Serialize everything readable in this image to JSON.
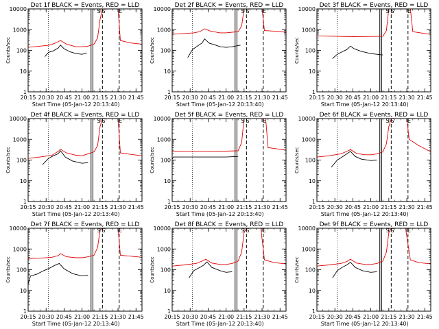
{
  "chart_data": {
    "type": "line",
    "layout": "3x3 grid",
    "y_scale": "log",
    "ylim": [
      1,
      10000
    ],
    "xlim": [
      "20:15",
      "21:50"
    ],
    "ylabel": "Counts/sec",
    "xlabel": "Start Time (05-Jan-12 20:13:40)",
    "xticks": [
      "20:15",
      "20:30",
      "20:45",
      "21:00",
      "21:15",
      "21:30",
      "21:45"
    ],
    "yticks": [
      "1",
      "10",
      "100",
      "1000",
      "10000"
    ],
    "markers": [
      "S",
      "S",
      "E"
    ],
    "colors": {
      "events": "#000000",
      "lld": "#e00000"
    },
    "panels": [
      {
        "title": "Det 1f BLACK = Events, RED = LLD",
        "events": [
          {
            "t": "20:29",
            "v": 50
          },
          {
            "t": "20:32",
            "v": 80
          },
          {
            "t": "20:36",
            "v": 95
          },
          {
            "t": "20:40",
            "v": 130
          },
          {
            "t": "20:42",
            "v": 180
          },
          {
            "t": "20:45",
            "v": 120
          },
          {
            "t": "20:50",
            "v": 85
          },
          {
            "t": "20:55",
            "v": 70
          },
          {
            "t": "21:00",
            "v": 65
          },
          {
            "t": "21:04",
            "v": 75
          }
        ],
        "lld": [
          {
            "t": "20:15",
            "v": 140
          },
          {
            "t": "20:25",
            "v": 160
          },
          {
            "t": "20:33",
            "v": 180
          },
          {
            "t": "20:38",
            "v": 230
          },
          {
            "t": "20:42",
            "v": 300
          },
          {
            "t": "20:47",
            "v": 200
          },
          {
            "t": "20:55",
            "v": 150
          },
          {
            "t": "21:00",
            "v": 150
          },
          {
            "t": "21:05",
            "v": 160
          },
          {
            "t": "21:10",
            "v": 200
          },
          {
            "t": "21:13",
            "v": 400
          },
          {
            "t": "21:15",
            "v": 3000
          },
          {
            "t": "21:17",
            "v": 10000
          },
          {
            "t": "21:30",
            "v": 10000
          },
          {
            "t": "21:32",
            "v": 300
          },
          {
            "t": "21:40",
            "v": 230
          },
          {
            "t": "21:50",
            "v": 200
          }
        ]
      },
      {
        "title": "Det 2f BLACK = Events, RED = LLD",
        "events": [
          {
            "t": "20:28",
            "v": 45
          },
          {
            "t": "20:32",
            "v": 110
          },
          {
            "t": "20:36",
            "v": 160
          },
          {
            "t": "20:40",
            "v": 230
          },
          {
            "t": "20:42",
            "v": 360
          },
          {
            "t": "20:46",
            "v": 220
          },
          {
            "t": "20:50",
            "v": 190
          },
          {
            "t": "20:55",
            "v": 150
          },
          {
            "t": "21:00",
            "v": 140
          },
          {
            "t": "21:05",
            "v": 150
          },
          {
            "t": "21:12",
            "v": 180
          }
        ],
        "lld": [
          {
            "t": "20:15",
            "v": 600
          },
          {
            "t": "20:25",
            "v": 650
          },
          {
            "t": "20:33",
            "v": 700
          },
          {
            "t": "20:38",
            "v": 800
          },
          {
            "t": "20:42",
            "v": 1100
          },
          {
            "t": "20:47",
            "v": 850
          },
          {
            "t": "20:55",
            "v": 700
          },
          {
            "t": "21:00",
            "v": 700
          },
          {
            "t": "21:05",
            "v": 750
          },
          {
            "t": "21:10",
            "v": 800
          },
          {
            "t": "21:13",
            "v": 1500
          },
          {
            "t": "21:15",
            "v": 10000
          },
          {
            "t": "21:30",
            "v": 10000
          },
          {
            "t": "21:32",
            "v": 900
          },
          {
            "t": "21:40",
            "v": 850
          },
          {
            "t": "21:50",
            "v": 750
          }
        ]
      },
      {
        "title": "Det 3f BLACK = Events, RED = LLD",
        "events": [
          {
            "t": "20:28",
            "v": 40
          },
          {
            "t": "20:32",
            "v": 65
          },
          {
            "t": "20:36",
            "v": 85
          },
          {
            "t": "20:40",
            "v": 110
          },
          {
            "t": "20:43",
            "v": 160
          },
          {
            "t": "20:46",
            "v": 120
          },
          {
            "t": "20:52",
            "v": 90
          },
          {
            "t": "21:00",
            "v": 70
          },
          {
            "t": "21:05",
            "v": 65
          },
          {
            "t": "21:10",
            "v": 60
          }
        ],
        "lld": [
          {
            "t": "20:15",
            "v": 500
          },
          {
            "t": "20:30",
            "v": 480
          },
          {
            "t": "20:45",
            "v": 460
          },
          {
            "t": "21:00",
            "v": 470
          },
          {
            "t": "21:10",
            "v": 480
          },
          {
            "t": "21:13",
            "v": 900
          },
          {
            "t": "21:15",
            "v": 10000
          },
          {
            "t": "21:33",
            "v": 10000
          },
          {
            "t": "21:35",
            "v": 800
          },
          {
            "t": "21:45",
            "v": 650
          },
          {
            "t": "21:50",
            "v": 600
          }
        ]
      },
      {
        "title": "Det 4f BLACK = Events, RED = LLD",
        "events": [
          {
            "t": "20:27",
            "v": 60
          },
          {
            "t": "20:32",
            "v": 120
          },
          {
            "t": "20:36",
            "v": 160
          },
          {
            "t": "20:40",
            "v": 200
          },
          {
            "t": "20:42",
            "v": 280
          },
          {
            "t": "20:46",
            "v": 140
          },
          {
            "t": "20:52",
            "v": 90
          },
          {
            "t": "21:00",
            "v": 70
          },
          {
            "t": "21:05",
            "v": 75
          }
        ],
        "lld": [
          {
            "t": "20:15",
            "v": 120
          },
          {
            "t": "20:25",
            "v": 140
          },
          {
            "t": "20:35",
            "v": 170
          },
          {
            "t": "20:40",
            "v": 260
          },
          {
            "t": "20:42",
            "v": 330
          },
          {
            "t": "20:47",
            "v": 220
          },
          {
            "t": "20:55",
            "v": 170
          },
          {
            "t": "21:00",
            "v": 160
          },
          {
            "t": "21:05",
            "v": 200
          },
          {
            "t": "21:10",
            "v": 250
          },
          {
            "t": "21:13",
            "v": 500
          },
          {
            "t": "21:15",
            "v": 4000
          },
          {
            "t": "21:17",
            "v": 10000
          },
          {
            "t": "21:30",
            "v": 10000
          },
          {
            "t": "21:32",
            "v": 220
          },
          {
            "t": "21:40",
            "v": 190
          },
          {
            "t": "21:50",
            "v": 160
          }
        ]
      },
      {
        "title": "Det 5f BLACK = Events, RED = LLD",
        "events": [
          {
            "t": "20:15",
            "v": 110
          },
          {
            "t": "20:16",
            "v": 140
          },
          {
            "t": "20:30",
            "v": 140
          },
          {
            "t": "20:45",
            "v": 140
          },
          {
            "t": "21:00",
            "v": 140
          },
          {
            "t": "21:10",
            "v": 150
          }
        ],
        "lld": [
          {
            "t": "20:15",
            "v": 260
          },
          {
            "t": "20:30",
            "v": 260
          },
          {
            "t": "20:45",
            "v": 260
          },
          {
            "t": "21:00",
            "v": 270
          },
          {
            "t": "21:10",
            "v": 280
          },
          {
            "t": "21:13",
            "v": 700
          },
          {
            "t": "21:15",
            "v": 10000
          },
          {
            "t": "21:33",
            "v": 10000
          },
          {
            "t": "21:35",
            "v": 400
          },
          {
            "t": "21:45",
            "v": 330
          },
          {
            "t": "21:50",
            "v": 300
          }
        ]
      },
      {
        "title": "Det 6f BLACK = Events, RED = LLD",
        "events": [
          {
            "t": "20:27",
            "v": 45
          },
          {
            "t": "20:32",
            "v": 100
          },
          {
            "t": "20:36",
            "v": 140
          },
          {
            "t": "20:40",
            "v": 200
          },
          {
            "t": "20:43",
            "v": 260
          },
          {
            "t": "20:47",
            "v": 150
          },
          {
            "t": "20:52",
            "v": 110
          },
          {
            "t": "21:00",
            "v": 95
          },
          {
            "t": "21:05",
            "v": 100
          }
        ],
        "lld": [
          {
            "t": "20:15",
            "v": 140
          },
          {
            "t": "20:25",
            "v": 160
          },
          {
            "t": "20:35",
            "v": 200
          },
          {
            "t": "20:40",
            "v": 260
          },
          {
            "t": "20:43",
            "v": 320
          },
          {
            "t": "20:48",
            "v": 210
          },
          {
            "t": "20:55",
            "v": 180
          },
          {
            "t": "21:00",
            "v": 180
          },
          {
            "t": "21:05",
            "v": 200
          },
          {
            "t": "21:10",
            "v": 250
          },
          {
            "t": "21:13",
            "v": 600
          },
          {
            "t": "21:15",
            "v": 4000
          },
          {
            "t": "21:17",
            "v": 10000
          },
          {
            "t": "21:30",
            "v": 10000
          },
          {
            "t": "21:32",
            "v": 1000
          },
          {
            "t": "21:40",
            "v": 500
          },
          {
            "t": "21:50",
            "v": 250
          }
        ]
      },
      {
        "title": "Det 7f BLACK = Events, RED = LLD",
        "events": [
          {
            "t": "20:15",
            "v": 20
          },
          {
            "t": "20:17",
            "v": 50
          },
          {
            "t": "20:22",
            "v": 60
          },
          {
            "t": "20:28",
            "v": 90
          },
          {
            "t": "20:33",
            "v": 120
          },
          {
            "t": "20:37",
            "v": 160
          },
          {
            "t": "20:41",
            "v": 200
          },
          {
            "t": "20:45",
            "v": 110
          },
          {
            "t": "20:52",
            "v": 65
          },
          {
            "t": "21:00",
            "v": 50
          },
          {
            "t": "21:05",
            "v": 55
          }
        ],
        "lld": [
          {
            "t": "20:15",
            "v": 350
          },
          {
            "t": "20:25",
            "v": 360
          },
          {
            "t": "20:35",
            "v": 400
          },
          {
            "t": "20:40",
            "v": 480
          },
          {
            "t": "20:42",
            "v": 600
          },
          {
            "t": "20:47",
            "v": 420
          },
          {
            "t": "20:55",
            "v": 380
          },
          {
            "t": "21:00",
            "v": 380
          },
          {
            "t": "21:05",
            "v": 420
          },
          {
            "t": "21:10",
            "v": 500
          },
          {
            "t": "21:13",
            "v": 1200
          },
          {
            "t": "21:15",
            "v": 8000
          },
          {
            "t": "21:17",
            "v": 10000
          },
          {
            "t": "21:30",
            "v": 10000
          },
          {
            "t": "21:32",
            "v": 500
          },
          {
            "t": "21:40",
            "v": 450
          },
          {
            "t": "21:50",
            "v": 400
          }
        ]
      },
      {
        "title": "Det 8f BLACK = Events, RED = LLD",
        "events": [
          {
            "t": "20:29",
            "v": 40
          },
          {
            "t": "20:33",
            "v": 90
          },
          {
            "t": "20:37",
            "v": 120
          },
          {
            "t": "20:41",
            "v": 160
          },
          {
            "t": "20:44",
            "v": 240
          },
          {
            "t": "20:48",
            "v": 130
          },
          {
            "t": "20:55",
            "v": 90
          },
          {
            "t": "21:00",
            "v": 75
          },
          {
            "t": "21:05",
            "v": 80
          }
        ],
        "lld": [
          {
            "t": "20:15",
            "v": 150
          },
          {
            "t": "20:25",
            "v": 170
          },
          {
            "t": "20:35",
            "v": 200
          },
          {
            "t": "20:40",
            "v": 260
          },
          {
            "t": "20:43",
            "v": 320
          },
          {
            "t": "20:48",
            "v": 210
          },
          {
            "t": "20:55",
            "v": 180
          },
          {
            "t": "21:00",
            "v": 180
          },
          {
            "t": "21:05",
            "v": 200
          },
          {
            "t": "21:10",
            "v": 260
          },
          {
            "t": "21:13",
            "v": 700
          },
          {
            "t": "21:15",
            "v": 6000
          },
          {
            "t": "21:17",
            "v": 10000
          },
          {
            "t": "21:29",
            "v": 10000
          },
          {
            "t": "21:32",
            "v": 300
          },
          {
            "t": "21:40",
            "v": 220
          },
          {
            "t": "21:50",
            "v": 190
          }
        ]
      },
      {
        "title": "Det 9f BLACK = Events, RED = LLD",
        "events": [
          {
            "t": "20:28",
            "v": 40
          },
          {
            "t": "20:32",
            "v": 90
          },
          {
            "t": "20:36",
            "v": 130
          },
          {
            "t": "20:40",
            "v": 170
          },
          {
            "t": "20:43",
            "v": 230
          },
          {
            "t": "20:47",
            "v": 130
          },
          {
            "t": "20:53",
            "v": 90
          },
          {
            "t": "21:00",
            "v": 75
          },
          {
            "t": "21:05",
            "v": 80
          }
        ],
        "lld": [
          {
            "t": "20:15",
            "v": 150
          },
          {
            "t": "20:25",
            "v": 170
          },
          {
            "t": "20:35",
            "v": 200
          },
          {
            "t": "20:40",
            "v": 250
          },
          {
            "t": "20:43",
            "v": 320
          },
          {
            "t": "20:48",
            "v": 210
          },
          {
            "t": "20:55",
            "v": 180
          },
          {
            "t": "21:00",
            "v": 180
          },
          {
            "t": "21:05",
            "v": 200
          },
          {
            "t": "21:10",
            "v": 260
          },
          {
            "t": "21:13",
            "v": 700
          },
          {
            "t": "21:15",
            "v": 6000
          },
          {
            "t": "21:17",
            "v": 10000
          },
          {
            "t": "21:29",
            "v": 10000
          },
          {
            "t": "21:33",
            "v": 300
          },
          {
            "t": "21:40",
            "v": 220
          },
          {
            "t": "21:50",
            "v": 190
          }
        ]
      }
    ]
  }
}
